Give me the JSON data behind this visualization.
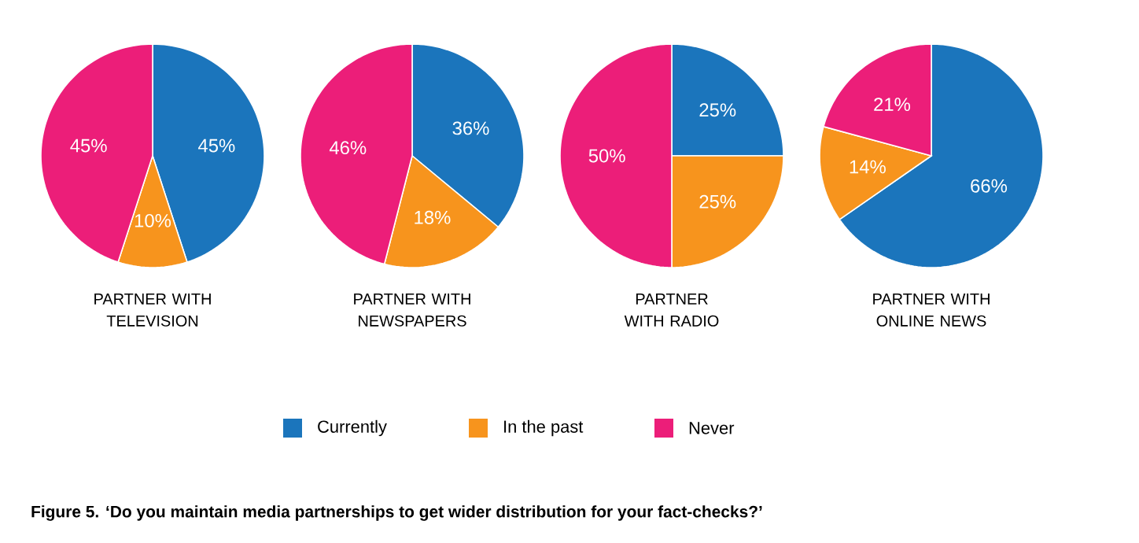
{
  "chart_data": [
    {
      "type": "pie",
      "title": "PARTNER WITH TELEVISION",
      "categories": [
        "Currently",
        "In the past",
        "Never"
      ],
      "values": [
        45,
        10,
        45
      ],
      "value_labels": [
        "45%",
        "10%",
        "45%"
      ],
      "colors": [
        "#1b75bc",
        "#f7941d",
        "#ec1e79"
      ],
      "legend": "bottom",
      "annotations": [
        "Figure 5. ‘Do you maintain media partnerships to get wider distribution for your fact-checks?’"
      ]
    },
    {
      "type": "pie",
      "title": "PARTNER WITH NEWSPAPERS",
      "categories": [
        null,
        null,
        null
      ],
      "values": [
        36,
        18,
        46
      ],
      "value_labels": [
        "36%",
        "18%",
        "46%"
      ],
      "colors": [
        "#1b75bc",
        "#f7941d",
        "#ec1e79"
      ]
    },
    {
      "type": "pie",
      "title": "PARTNER WITH RADIO",
      "categories": [
        null,
        null,
        null
      ],
      "values": [
        25,
        25,
        50
      ],
      "value_labels": [
        "25%",
        "25%",
        "50%"
      ],
      "colors": [
        "#1b75bc",
        "#f7941d",
        "#ec1e79"
      ]
    },
    {
      "type": "pie",
      "title": "PARTNER WITH ONLINE NEWS",
      "categories": [
        null,
        null,
        null
      ],
      "values": [
        66,
        14,
        21
      ],
      "value_labels": [
        "66%",
        "14%",
        "21%"
      ],
      "colors": [
        "#1b75bc",
        "#f7941d",
        "#ec1e79"
      ]
    }
  ]
}
